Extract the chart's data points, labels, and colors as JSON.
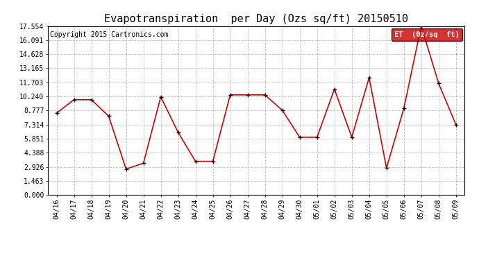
{
  "title": "Evapotranspiration  per Day (Ozs sq/ft) 20150510",
  "copyright": "Copyright 2015 Cartronics.com",
  "legend_label": "ET  (0z/sq  ft)",
  "dates": [
    "04/16",
    "04/17",
    "04/18",
    "04/19",
    "04/20",
    "04/21",
    "04/22",
    "04/23",
    "04/24",
    "04/25",
    "04/26",
    "04/27",
    "04/28",
    "04/29",
    "04/30",
    "05/01",
    "05/02",
    "05/03",
    "05/04",
    "05/05",
    "05/06",
    "05/07",
    "05/08",
    "05/09"
  ],
  "et_values": [
    8.5,
    9.9,
    9.9,
    8.2,
    2.7,
    3.3,
    10.2,
    6.5,
    3.5,
    3.5,
    10.4,
    10.4,
    10.4,
    8.8,
    6.0,
    6.0,
    11.0,
    6.0,
    12.2,
    2.8,
    9.0,
    17.554,
    11.6,
    7.3
  ],
  "ylim": [
    0.0,
    17.554
  ],
  "yticks": [
    0.0,
    1.463,
    2.926,
    4.388,
    5.851,
    7.314,
    8.777,
    10.24,
    11.703,
    13.165,
    14.628,
    16.091,
    17.554
  ],
  "line_color": "#cc0000",
  "bg_color": "#ffffff",
  "grid_color": "#b0b0b0",
  "legend_bg": "#cc0000",
  "legend_text_color": "#ffffff",
  "title_fontsize": 11,
  "axis_fontsize": 7,
  "copyright_fontsize": 7
}
